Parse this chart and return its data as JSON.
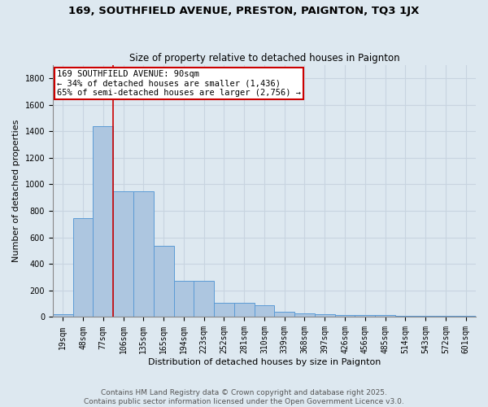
{
  "title": "169, SOUTHFIELD AVENUE, PRESTON, PAIGNTON, TQ3 1JX",
  "subtitle": "Size of property relative to detached houses in Paignton",
  "xlabel": "Distribution of detached houses by size in Paignton",
  "ylabel": "Number of detached properties",
  "categories": [
    "19sqm",
    "48sqm",
    "77sqm",
    "106sqm",
    "135sqm",
    "165sqm",
    "194sqm",
    "223sqm",
    "252sqm",
    "281sqm",
    "310sqm",
    "339sqm",
    "368sqm",
    "397sqm",
    "426sqm",
    "456sqm",
    "485sqm",
    "514sqm",
    "543sqm",
    "572sqm",
    "601sqm"
  ],
  "values": [
    20,
    745,
    1436,
    950,
    950,
    535,
    270,
    270,
    105,
    105,
    90,
    40,
    25,
    20,
    15,
    15,
    15,
    10,
    10,
    10,
    10
  ],
  "bar_color": "#adc6e0",
  "bar_edge_color": "#5b9bd5",
  "vline_color": "#cc0000",
  "annotation_text": "169 SOUTHFIELD AVENUE: 90sqm\n← 34% of detached houses are smaller (1,436)\n65% of semi-detached houses are larger (2,756) →",
  "annotation_box_color": "white",
  "annotation_box_edge_color": "#cc0000",
  "ylim": [
    0,
    1900
  ],
  "yticks": [
    0,
    200,
    400,
    600,
    800,
    1000,
    1200,
    1400,
    1600,
    1800
  ],
  "grid_color": "#c8d4e0",
  "background_color": "#dde8f0",
  "footer_text": "Contains HM Land Registry data © Crown copyright and database right 2025.\nContains public sector information licensed under the Open Government Licence v3.0.",
  "title_fontsize": 9.5,
  "subtitle_fontsize": 8.5,
  "xlabel_fontsize": 8,
  "ylabel_fontsize": 8,
  "tick_fontsize": 7,
  "annotation_fontsize": 7.5,
  "footer_fontsize": 6.5
}
